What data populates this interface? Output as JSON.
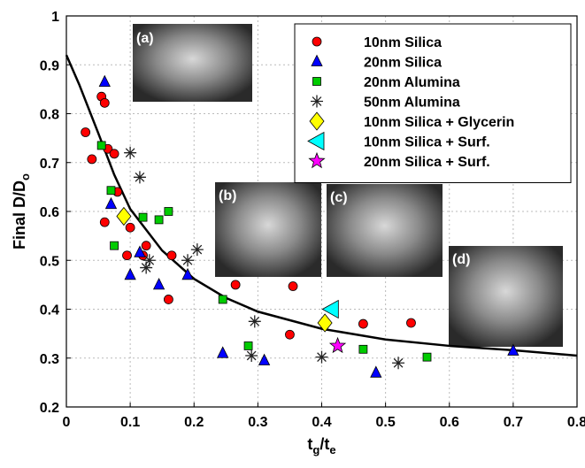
{
  "chart_data": {
    "type": "scatter",
    "y_label": {
      "text": "Final D/D",
      "subscript": "o"
    },
    "x_label": [
      {
        "text": "t",
        "subscript": "g"
      },
      {
        "text": "/t",
        "subscript": "e"
      }
    ],
    "xlim": [
      0,
      0.8
    ],
    "ylim": [
      0.2,
      1
    ],
    "xticks": [
      0,
      0.1,
      0.2,
      0.3,
      0.4,
      0.5,
      0.6,
      0.7,
      0.8
    ],
    "yticks": [
      0.2,
      0.3,
      0.4,
      0.5,
      0.6,
      0.7,
      0.8,
      0.9,
      1
    ],
    "grid": true,
    "legend": "upper right",
    "series": [
      {
        "name": "10nm Silica",
        "color": "#ff0000",
        "marker": "circle",
        "x": [
          0.03,
          0.04,
          0.055,
          0.06,
          0.065,
          0.075,
          0.08,
          0.06,
          0.1,
          0.095,
          0.12,
          0.125,
          0.165,
          0.16,
          0.265,
          0.355,
          0.35,
          0.465,
          0.54
        ],
        "y": [
          0.762,
          0.707,
          0.835,
          0.822,
          0.728,
          0.718,
          0.64,
          0.578,
          0.567,
          0.51,
          0.51,
          0.53,
          0.51,
          0.42,
          0.45,
          0.447,
          0.348,
          0.37,
          0.372
        ]
      },
      {
        "name": "20nm Silica",
        "color": "#0000ff",
        "marker": "triangle-up",
        "x": [
          0.06,
          0.07,
          0.1,
          0.115,
          0.145,
          0.19,
          0.245,
          0.31,
          0.485,
          0.7
        ],
        "y": [
          0.865,
          0.615,
          0.47,
          0.516,
          0.45,
          0.47,
          0.31,
          0.295,
          0.27,
          0.315
        ]
      },
      {
        "name": "20nm Alumina",
        "color": "#00cc00",
        "marker": "square",
        "x": [
          0.055,
          0.07,
          0.075,
          0.12,
          0.145,
          0.16,
          0.245,
          0.285,
          0.465,
          0.565
        ],
        "y": [
          0.735,
          0.643,
          0.53,
          0.588,
          0.583,
          0.6,
          0.42,
          0.325,
          0.318,
          0.302
        ]
      },
      {
        "name": "50nm Alumina",
        "color": "#222222",
        "marker": "asterisk",
        "x": [
          0.1,
          0.115,
          0.125,
          0.13,
          0.19,
          0.205,
          0.29,
          0.295,
          0.4,
          0.52
        ],
        "y": [
          0.72,
          0.67,
          0.485,
          0.5,
          0.5,
          0.522,
          0.305,
          0.375,
          0.302,
          0.29
        ]
      },
      {
        "name": "10nm Silica + Glycerin",
        "color": "#ffff00",
        "marker": "diamond",
        "x": [
          0.09,
          0.405
        ],
        "y": [
          0.59,
          0.372
        ]
      },
      {
        "name": "10nm Silica + Surf.",
        "color": "#00ffff",
        "marker": "triangle-left",
        "x": [
          0.415
        ],
        "y": [
          0.4
        ]
      },
      {
        "name": "20nm Silica + Surf.",
        "color": "#ff00ff",
        "marker": "star",
        "x": [
          0.425
        ],
        "y": [
          0.325
        ]
      }
    ],
    "fit": {
      "color": "#000000",
      "x": [
        0,
        0.02,
        0.05,
        0.075,
        0.1,
        0.15,
        0.2,
        0.25,
        0.3,
        0.4,
        0.5,
        0.6,
        0.7,
        0.8
      ],
      "y": [
        0.92,
        0.86,
        0.76,
        0.675,
        0.605,
        0.52,
        0.462,
        0.423,
        0.395,
        0.36,
        0.338,
        0.325,
        0.316,
        0.305
      ]
    },
    "annotations": [
      "(a)",
      "(b)",
      "(c)",
      "(d)"
    ]
  }
}
